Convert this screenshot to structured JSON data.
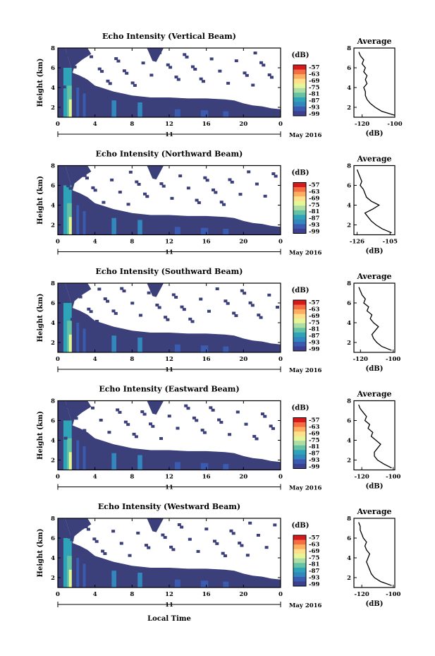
{
  "figure": {
    "date_label": "May 2016",
    "day_label": "11",
    "xlabel_bottom": "Local Time",
    "colorbar_unit": "(dB)",
    "colorbar_ticks": [
      "-57",
      "-63",
      "-69",
      "-75",
      "-81",
      "-87",
      "-93",
      "-99"
    ],
    "colorbar_colors": [
      "#d7191c",
      "#f46d43",
      "#fdae61",
      "#fee08b",
      "#e6f598",
      "#abdda4",
      "#66c2a5",
      "#2fa3b8",
      "#3288bd",
      "#3b5bb0",
      "#3d3f90"
    ],
    "background_color": "#3b3f7a"
  },
  "chart_data": [
    {
      "type": "heatmap",
      "title": "Echo Intensity (Vertical Beam)",
      "ylabel": "Height (km)",
      "xticks": [
        "0",
        "4",
        "8",
        "12",
        "16",
        "20",
        "0"
      ],
      "yticks": [
        "2",
        "4",
        "6",
        "8"
      ],
      "xlim": [
        0,
        24
      ],
      "ylim": [
        1,
        8
      ],
      "profile": {
        "title": "Average",
        "xlabel": "(dB)",
        "xticks": [
          "-120",
          "-100"
        ],
        "xlim": [
          -125,
          -100
        ],
        "yticks": [
          "2",
          "4",
          "6",
          "8"
        ],
        "ylim": [
          1,
          8
        ],
        "heights": [
          1.2,
          1.6,
          2.0,
          2.4,
          2.8,
          3.2,
          3.6,
          4.0,
          4.4,
          4.8,
          5.2,
          5.6,
          6.0,
          6.4,
          6.8,
          7.2,
          7.6
        ],
        "values": [
          -100,
          -108,
          -112,
          -115,
          -117,
          -118,
          -118,
          -119,
          -117,
          -118,
          -117,
          -119,
          -118,
          -120,
          -119,
          -121,
          -122
        ]
      }
    },
    {
      "type": "heatmap",
      "title": "Echo Intensity (Northward Beam)",
      "ylabel": "Height (km)",
      "xticks": [
        "0",
        "4",
        "8",
        "12",
        "16",
        "20",
        "0"
      ],
      "yticks": [
        "2",
        "4",
        "6",
        "8"
      ],
      "xlim": [
        0,
        24
      ],
      "ylim": [
        1,
        8
      ],
      "profile": {
        "title": "Average",
        "xlabel": "(dB)",
        "xticks": [
          "-126",
          "-105"
        ],
        "xlim": [
          -128,
          -102
        ],
        "yticks": [
          "2",
          "4",
          "6",
          "8"
        ],
        "ylim": [
          1,
          8
        ],
        "heights": [
          1.2,
          1.6,
          2.0,
          2.4,
          2.8,
          3.2,
          3.6,
          4.0,
          4.4,
          4.8,
          5.2,
          5.6,
          6.0,
          6.4,
          6.8,
          7.2,
          7.6
        ],
        "values": [
          -104,
          -110,
          -114,
          -117,
          -119,
          -121,
          -116,
          -112,
          -117,
          -120,
          -121,
          -122,
          -124,
          -123,
          -124,
          -125,
          -126
        ]
      }
    },
    {
      "type": "heatmap",
      "title": "Echo Intensity (Southward Beam)",
      "ylabel": "Height (km)",
      "xticks": [
        "0",
        "4",
        "8",
        "12",
        "16",
        "20",
        "0"
      ],
      "yticks": [
        "2",
        "4",
        "6",
        "8"
      ],
      "xlim": [
        0,
        24
      ],
      "ylim": [
        1,
        8
      ],
      "profile": {
        "title": "Average",
        "xlabel": "(dB)",
        "xticks": [
          "-120",
          "-100"
        ],
        "xlim": [
          -124,
          -99
        ],
        "yticks": [
          "2",
          "4",
          "6",
          "8"
        ],
        "ylim": [
          1,
          8
        ],
        "heights": [
          1.2,
          1.6,
          2.0,
          2.4,
          2.8,
          3.2,
          3.6,
          4.0,
          4.4,
          4.8,
          5.2,
          5.6,
          6.0,
          6.4,
          6.8,
          7.2,
          7.6
        ],
        "values": [
          -101,
          -107,
          -110,
          -112,
          -113,
          -111,
          -109,
          -112,
          -114,
          -113,
          -116,
          -115,
          -118,
          -117,
          -119,
          -120,
          -121
        ]
      }
    },
    {
      "type": "heatmap",
      "title": "Echo Intensity (Eastward Beam)",
      "ylabel": "Height (km)",
      "xticks": [
        "0",
        "4",
        "8",
        "12",
        "16",
        "20",
        "0"
      ],
      "yticks": [
        "2",
        "4",
        "6",
        "8"
      ],
      "xlim": [
        0,
        24
      ],
      "ylim": [
        1,
        8
      ],
      "profile": {
        "title": "Average",
        "xlabel": "(dB)",
        "xticks": [
          "-120",
          "-100"
        ],
        "xlim": [
          -125,
          -99
        ],
        "yticks": [
          "2",
          "4",
          "6",
          "8"
        ],
        "ylim": [
          1,
          8
        ],
        "heights": [
          1.2,
          1.6,
          2.0,
          2.4,
          2.8,
          3.2,
          3.6,
          4.0,
          4.4,
          4.8,
          5.2,
          5.6,
          6.0,
          6.4,
          6.8,
          7.2,
          7.6
        ],
        "values": [
          -101,
          -106,
          -110,
          -112,
          -112,
          -110,
          -108,
          -111,
          -114,
          -113,
          -116,
          -115,
          -118,
          -117,
          -119,
          -121,
          -122
        ]
      }
    },
    {
      "type": "heatmap",
      "title": "Echo Intensity (Westward Beam)",
      "ylabel": "Height (km)",
      "xticks": [
        "0",
        "4",
        "8",
        "12",
        "16",
        "20",
        "0"
      ],
      "yticks": [
        "2",
        "4",
        "6",
        "8"
      ],
      "xlim": [
        0,
        24
      ],
      "ylim": [
        1,
        8
      ],
      "profile": {
        "title": "Average",
        "xlabel": "(dB)",
        "xticks": [
          "-120",
          "-100"
        ],
        "xlim": [
          -125,
          -99
        ],
        "yticks": [
          "2",
          "4",
          "6",
          "8"
        ],
        "ylim": [
          1,
          8
        ],
        "heights": [
          1.2,
          1.6,
          2.0,
          2.4,
          2.8,
          3.2,
          3.6,
          4.0,
          4.4,
          4.8,
          5.2,
          5.6,
          6.0,
          6.4,
          6.8,
          7.2,
          7.6
        ],
        "values": [
          -101,
          -108,
          -112,
          -114,
          -115,
          -116,
          -117,
          -116,
          -115,
          -117,
          -118,
          -117,
          -119,
          -120,
          -121,
          -121,
          -122
        ]
      }
    }
  ]
}
